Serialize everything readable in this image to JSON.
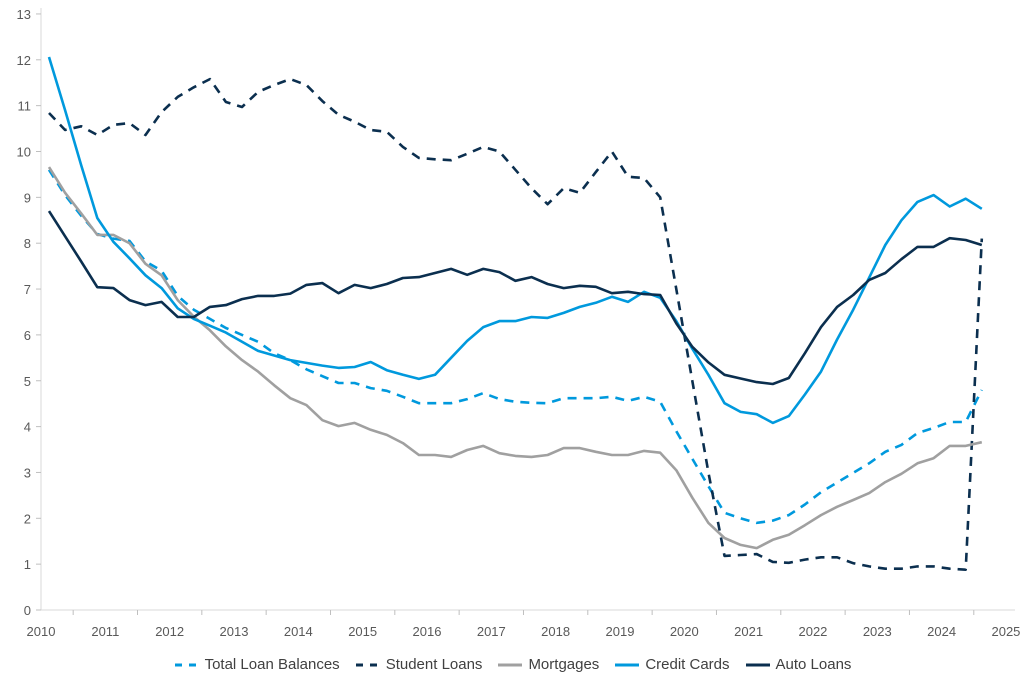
{
  "chart_data": {
    "type": "line",
    "title": "",
    "xlabel": "",
    "ylabel": "",
    "xlim": [
      2010,
      2025
    ],
    "ylim": [
      0,
      13
    ],
    "yticks": [
      "0",
      "1",
      "2",
      "3",
      "4",
      "5",
      "6",
      "7",
      "8",
      "9",
      "10",
      "11",
      "12",
      "13"
    ],
    "xticks": [
      "2010",
      "2011",
      "2012",
      "2013",
      "2014",
      "2015",
      "2016",
      "2017",
      "2018",
      "2019",
      "2020",
      "2021",
      "2022",
      "2023",
      "2024",
      "2025"
    ],
    "grid": false,
    "legend_position": "bottom",
    "x_start": 2010.125,
    "x_step": 0.25,
    "series": [
      {
        "name": "Total Loan Balances",
        "color": "#0099DD",
        "dashed": true,
        "values": [
          9.6,
          9.05,
          8.6,
          8.2,
          8.1,
          8.05,
          7.6,
          7.4,
          6.85,
          6.55,
          6.35,
          6.15,
          6.0,
          5.85,
          5.6,
          5.45,
          5.25,
          5.1,
          4.95,
          4.95,
          4.84,
          4.78,
          4.65,
          4.51,
          4.51,
          4.51,
          4.6,
          4.73,
          4.6,
          4.54,
          4.52,
          4.51,
          4.62,
          4.62,
          4.62,
          4.65,
          4.56,
          4.65,
          4.54,
          3.9,
          3.3,
          2.7,
          2.12,
          2.0,
          1.9,
          1.95,
          2.07,
          2.3,
          2.57,
          2.78,
          2.99,
          3.2,
          3.45,
          3.6,
          3.86,
          3.97,
          4.1,
          4.1,
          4.8
        ]
      },
      {
        "name": "Student Loans",
        "color": "#0B2F4F",
        "dashed": true,
        "values": [
          10.84,
          10.47,
          10.55,
          10.36,
          10.58,
          10.62,
          10.36,
          10.86,
          11.19,
          11.4,
          11.58,
          11.08,
          10.97,
          11.3,
          11.45,
          11.58,
          11.45,
          11.1,
          10.8,
          10.65,
          10.47,
          10.43,
          10.1,
          9.86,
          9.83,
          9.81,
          9.95,
          10.1,
          10.0,
          9.6,
          9.2,
          8.85,
          9.2,
          9.1,
          9.55,
          10.0,
          9.45,
          9.42,
          9.0,
          7.0,
          5.0,
          3.0,
          1.18,
          1.2,
          1.22,
          1.05,
          1.03,
          1.1,
          1.15,
          1.15,
          1.02,
          0.95,
          0.9,
          0.9,
          0.95,
          0.95,
          0.9,
          0.88,
          8.1
        ]
      },
      {
        "name": "Mortgages",
        "color": "#A0A0A0",
        "dashed": false,
        "values": [
          9.66,
          9.1,
          8.65,
          8.18,
          8.18,
          8.0,
          7.55,
          7.3,
          6.76,
          6.4,
          6.1,
          5.75,
          5.45,
          5.2,
          4.9,
          4.62,
          4.47,
          4.14,
          4.01,
          4.08,
          3.93,
          3.82,
          3.64,
          3.38,
          3.38,
          3.34,
          3.49,
          3.58,
          3.42,
          3.36,
          3.34,
          3.38,
          3.53,
          3.53,
          3.45,
          3.38,
          3.38,
          3.47,
          3.43,
          3.05,
          2.45,
          1.9,
          1.57,
          1.42,
          1.35,
          1.53,
          1.64,
          1.85,
          2.07,
          2.25,
          2.4,
          2.55,
          2.79,
          2.97,
          3.2,
          3.31,
          3.58,
          3.58,
          3.66
        ]
      },
      {
        "name": "Credit Cards",
        "color": "#0099DD",
        "dashed": false,
        "values": [
          12.06,
          10.9,
          9.7,
          8.55,
          8.03,
          7.67,
          7.3,
          7.02,
          6.58,
          6.35,
          6.2,
          6.05,
          5.85,
          5.65,
          5.55,
          5.45,
          5.39,
          5.33,
          5.28,
          5.3,
          5.41,
          5.23,
          5.13,
          5.04,
          5.13,
          5.5,
          5.87,
          6.17,
          6.3,
          6.3,
          6.39,
          6.37,
          6.48,
          6.61,
          6.7,
          6.83,
          6.72,
          6.94,
          6.81,
          6.3,
          5.7,
          5.13,
          4.51,
          4.32,
          4.27,
          4.08,
          4.23,
          4.7,
          5.2,
          5.9,
          6.55,
          7.25,
          7.96,
          8.5,
          8.9,
          9.05,
          8.8,
          8.97,
          8.75
        ]
      },
      {
        "name": "Auto Loans",
        "color": "#0B2F4F",
        "dashed": false,
        "values": [
          8.7,
          8.15,
          7.6,
          7.04,
          7.02,
          6.76,
          6.65,
          6.72,
          6.39,
          6.39,
          6.61,
          6.65,
          6.78,
          6.85,
          6.85,
          6.9,
          7.09,
          7.13,
          6.91,
          7.09,
          7.02,
          7.11,
          7.24,
          7.26,
          7.35,
          7.44,
          7.31,
          7.44,
          7.37,
          7.18,
          7.26,
          7.11,
          7.02,
          7.07,
          7.05,
          6.91,
          6.94,
          6.89,
          6.87,
          6.25,
          5.74,
          5.4,
          5.13,
          5.05,
          4.97,
          4.93,
          5.06,
          5.6,
          6.17,
          6.61,
          6.87,
          7.2,
          7.35,
          7.65,
          7.92,
          7.92,
          8.11,
          8.07,
          7.96
        ]
      }
    ]
  }
}
